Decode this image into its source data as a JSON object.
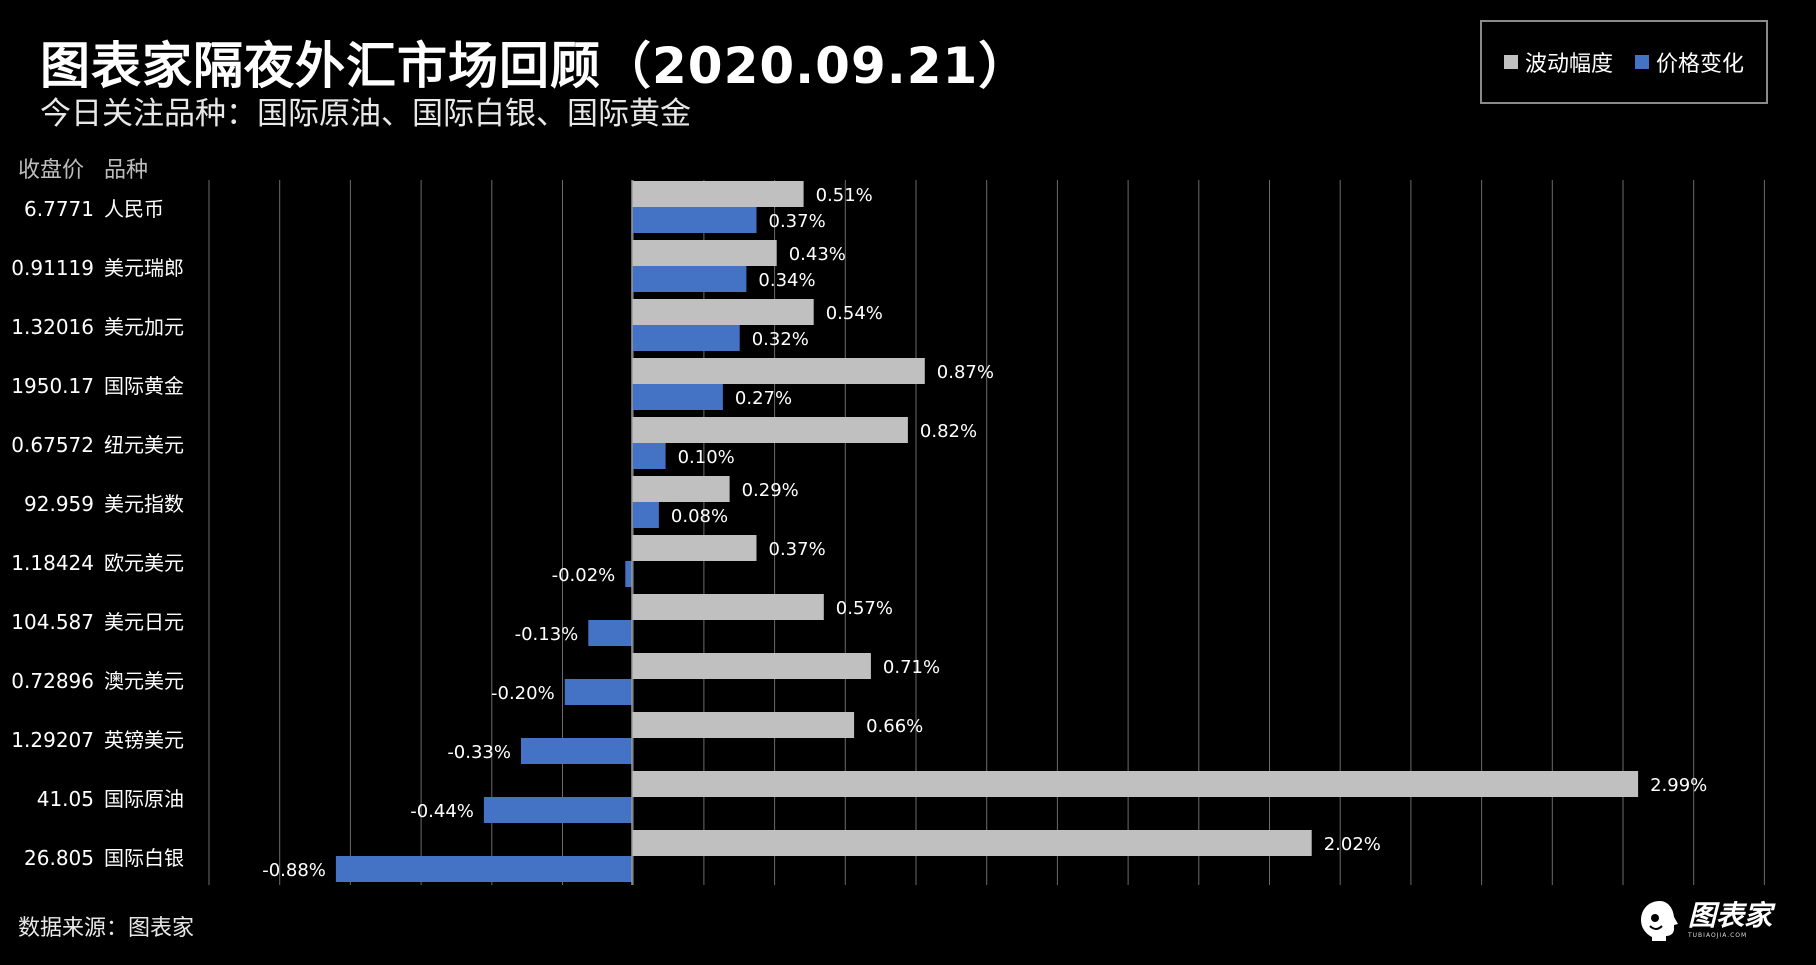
{
  "header": {
    "title": "图表家隔夜外汇市场回顾（2020.09.21）",
    "subtitle": "今日关注品种：国际原油、国际白银、国际黄金"
  },
  "legend": {
    "items": [
      {
        "label": "波动幅度",
        "color": "#c0c0c0"
      },
      {
        "label": "价格变化",
        "color": "#4472c4"
      }
    ]
  },
  "columns": {
    "price_header": "收盘价",
    "name_header": "品种"
  },
  "footer": {
    "source": "数据来源：图表家",
    "logo_text": "图表家",
    "logo_sub": "TUBIAOJIA.COM"
  },
  "chart_data": {
    "type": "bar",
    "orientation": "horizontal",
    "unit": "%",
    "categories": [
      "人民币",
      "美元瑞郎",
      "美元加元",
      "国际黄金",
      "纽元美元",
      "美元指数",
      "欧元美元",
      "美元日元",
      "澳元美元",
      "英镑美元",
      "国际原油",
      "国际白银"
    ],
    "closing_prices": [
      "6.7771",
      "0.91119",
      "1.32016",
      "1950.17",
      "0.67572",
      "92.959",
      "1.18424",
      "104.587",
      "0.72896",
      "1.29207",
      "41.05",
      "26.805"
    ],
    "series": [
      {
        "name": "波动幅度",
        "color": "#c0c0c0",
        "values": [
          0.51,
          0.43,
          0.54,
          0.87,
          0.82,
          0.29,
          0.37,
          0.57,
          0.71,
          0.66,
          2.99,
          2.02
        ],
        "labels": [
          "0.51%",
          "0.43%",
          "0.54%",
          "0.87%",
          "0.82%",
          "0.29%",
          "0.37%",
          "0.57%",
          "0.71%",
          "0.66%",
          "2.99%",
          "2.02%"
        ]
      },
      {
        "name": "价格变化",
        "color": "#4472c4",
        "values": [
          0.37,
          0.34,
          0.32,
          0.27,
          0.1,
          0.08,
          -0.02,
          -0.13,
          -0.2,
          -0.33,
          -0.44,
          -0.88
        ],
        "labels": [
          "0.37%",
          "0.34%",
          "0.32%",
          "0.27%",
          "0.10%",
          "0.08%",
          "-0.02%",
          "-0.13%",
          "-0.20%",
          "-0.33%",
          "-0.44%",
          "-0.88%"
        ]
      }
    ],
    "xlim": [
      -1.2,
      3.2
    ],
    "grid": true,
    "legend_position": "top-right"
  }
}
